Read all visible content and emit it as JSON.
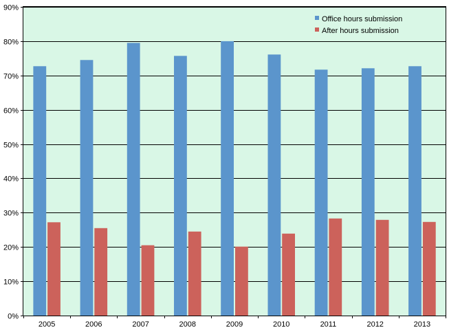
{
  "chart_data": {
    "type": "bar",
    "categories": [
      "2005",
      "2006",
      "2007",
      "2008",
      "2009",
      "2010",
      "2011",
      "2012",
      "2013"
    ],
    "series": [
      {
        "name": "Office hours submission",
        "color": "#5b95cc",
        "values": [
          72.7,
          74.5,
          79.5,
          75.7,
          80.0,
          76.1,
          71.7,
          72.1,
          72.7
        ]
      },
      {
        "name": "After hours submission",
        "color": "#cc625b",
        "values": [
          27.2,
          25.5,
          20.5,
          24.5,
          20.1,
          23.9,
          28.3,
          27.9,
          27.3
        ]
      }
    ],
    "y_ticks": [
      "0%",
      "10%",
      "20%",
      "30%",
      "40%",
      "50%",
      "60%",
      "70%",
      "80%",
      "90%"
    ],
    "ylim": [
      0,
      90
    ],
    "title": "",
    "xlabel": "",
    "ylabel": "",
    "grid": true,
    "legend": "top-right",
    "plot_background": "#d9f7e6"
  }
}
